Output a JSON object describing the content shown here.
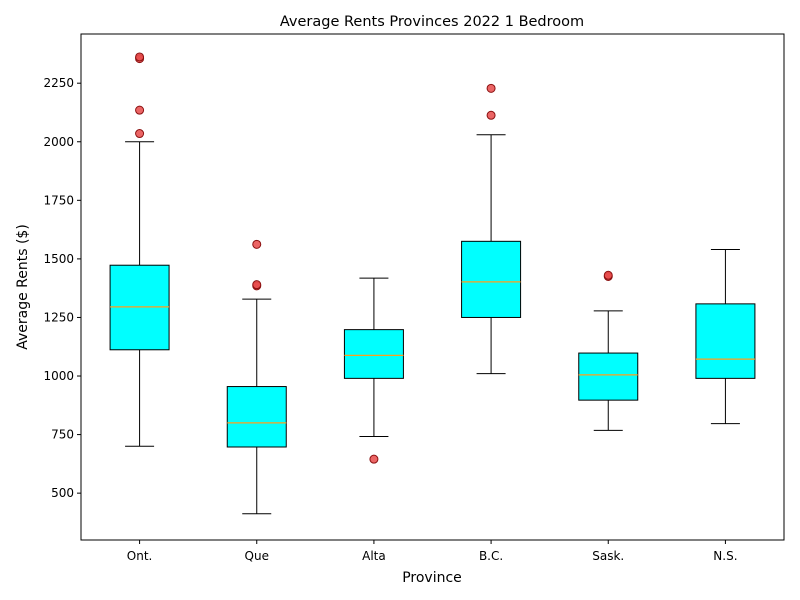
{
  "chart_data": {
    "type": "box",
    "title": "Average Rents Provinces 2022 1 Bedroom",
    "xlabel": "Province",
    "ylabel": "Average Rents ($)",
    "ylim": [
      300,
      2460
    ],
    "yticks": [
      500,
      750,
      1000,
      1250,
      1500,
      1750,
      2000,
      2250
    ],
    "grid": false,
    "categories": [
      "Ont.",
      "Que",
      "Alta",
      "B.C.",
      "Sask.",
      "N.S."
    ],
    "boxes": [
      {
        "category": "Ont.",
        "whisker_low": 700,
        "q1": 1112,
        "median": 1295,
        "q3": 1473,
        "whisker_high": 2000,
        "outliers": [
          2035,
          2135,
          2355,
          2362
        ]
      },
      {
        "category": "Que",
        "whisker_low": 412,
        "q1": 697,
        "median": 800,
        "q3": 955,
        "whisker_high": 1328,
        "outliers": [
          1385,
          1390,
          1562
        ]
      },
      {
        "category": "Alta",
        "whisker_low": 742,
        "q1": 990,
        "median": 1088,
        "q3": 1198,
        "whisker_high": 1418,
        "outliers": [
          645
        ]
      },
      {
        "category": "B.C.",
        "whisker_low": 1010,
        "q1": 1250,
        "median": 1402,
        "q3": 1575,
        "whisker_high": 2030,
        "outliers": [
          2113,
          2228
        ]
      },
      {
        "category": "Sask.",
        "whisker_low": 768,
        "q1": 897,
        "median": 1005,
        "q3": 1098,
        "whisker_high": 1278,
        "outliers": [
          1425,
          1430
        ]
      },
      {
        "category": "N.S.",
        "whisker_low": 797,
        "q1": 990,
        "median": 1072,
        "q3": 1308,
        "whisker_high": 1540,
        "outliers": []
      }
    ],
    "colors": {
      "box_fill": "#00ffff",
      "box_edge": "#000000",
      "median": "#ff9f1c",
      "outlier_fill": "#e84a4a",
      "outlier_edge": "#8b1010"
    }
  }
}
